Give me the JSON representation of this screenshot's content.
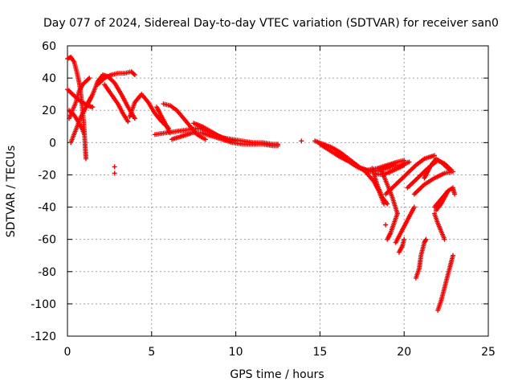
{
  "chart_data": {
    "type": "scatter",
    "title": "Day 077 of 2024, Sidereal Day-to-day VTEC variation (SDTVAR) for receiver san0",
    "xlabel": "GPS time / hours",
    "ylabel": "SDTVAR / TECUs",
    "xlim": [
      0,
      25
    ],
    "ylim": [
      -120,
      60
    ],
    "xticks": [
      0,
      5,
      10,
      15,
      20,
      25
    ],
    "yticks": [
      -120,
      -100,
      -80,
      -60,
      -40,
      -20,
      0,
      20,
      40,
      60
    ],
    "grid": true,
    "marker": "+",
    "color": "#ff0000",
    "series": [
      {
        "name": "arc1",
        "points": [
          [
            0.0,
            52
          ],
          [
            0.2,
            53
          ],
          [
            0.4,
            50
          ],
          [
            0.55,
            44
          ],
          [
            0.7,
            37
          ],
          [
            0.8,
            30
          ],
          [
            0.9,
            20
          ],
          [
            1.0,
            8
          ],
          [
            1.05,
            -2
          ],
          [
            1.1,
            -10
          ]
        ]
      },
      {
        "name": "arc2",
        "points": [
          [
            0.1,
            15
          ],
          [
            0.3,
            20
          ],
          [
            0.5,
            25
          ],
          [
            0.7,
            32
          ],
          [
            0.9,
            36
          ],
          [
            1.1,
            38
          ],
          [
            1.3,
            40
          ]
        ]
      },
      {
        "name": "arc3",
        "points": [
          [
            0.0,
            33
          ],
          [
            0.3,
            30
          ],
          [
            0.6,
            27
          ],
          [
            0.9,
            25
          ],
          [
            1.2,
            23
          ],
          [
            1.5,
            22
          ]
        ]
      },
      {
        "name": "arc4",
        "points": [
          [
            0.2,
            0
          ],
          [
            0.5,
            8
          ],
          [
            0.8,
            16
          ],
          [
            1.1,
            22
          ],
          [
            1.4,
            28
          ]
        ]
      },
      {
        "name": "arc5",
        "points": [
          [
            0.1,
            20
          ],
          [
            0.4,
            17
          ],
          [
            0.7,
            12
          ],
          [
            0.9,
            8
          ],
          [
            1.0,
            5
          ]
        ]
      },
      {
        "name": "arc6",
        "points": [
          [
            1.2,
            24
          ],
          [
            1.5,
            30
          ],
          [
            1.8,
            38
          ],
          [
            2.1,
            42
          ],
          [
            2.4,
            41
          ],
          [
            2.8,
            37
          ],
          [
            3.2,
            30
          ],
          [
            3.6,
            22
          ],
          [
            4.0,
            15
          ]
        ]
      },
      {
        "name": "arc7",
        "points": [
          [
            1.8,
            36
          ],
          [
            2.2,
            40
          ],
          [
            2.6,
            42
          ],
          [
            3.0,
            43
          ],
          [
            3.4,
            43
          ],
          [
            3.8,
            44
          ],
          [
            4.0,
            42
          ]
        ]
      },
      {
        "name": "arc8",
        "points": [
          [
            2.2,
            36
          ],
          [
            2.6,
            30
          ],
          [
            3.0,
            24
          ],
          [
            3.3,
            18
          ],
          [
            3.6,
            13
          ]
        ]
      },
      {
        "name": "isolated1",
        "points": [
          [
            2.8,
            -15
          ],
          [
            2.8,
            -19
          ],
          [
            18.9,
            -51
          ],
          [
            13.9,
            1
          ]
        ]
      },
      {
        "name": "arc9",
        "points": [
          [
            3.7,
            16
          ],
          [
            4.0,
            25
          ],
          [
            4.4,
            30
          ],
          [
            4.8,
            25
          ],
          [
            5.2,
            18
          ],
          [
            5.6,
            13
          ],
          [
            6.0,
            9
          ]
        ]
      },
      {
        "name": "arc10",
        "points": [
          [
            5.3,
            22
          ],
          [
            5.6,
            16
          ],
          [
            5.9,
            10
          ],
          [
            6.1,
            6
          ]
        ]
      },
      {
        "name": "arc11",
        "points": [
          [
            5.7,
            24
          ],
          [
            6.1,
            23
          ],
          [
            6.5,
            20
          ],
          [
            6.9,
            15
          ],
          [
            7.3,
            10
          ],
          [
            7.7,
            5
          ],
          [
            8.2,
            2
          ]
        ]
      },
      {
        "name": "arc12",
        "points": [
          [
            5.2,
            5
          ],
          [
            5.8,
            6
          ],
          [
            6.5,
            7
          ],
          [
            7.2,
            8
          ],
          [
            7.9,
            9
          ],
          [
            8.6,
            6
          ],
          [
            9.2,
            3
          ],
          [
            9.8,
            2
          ],
          [
            10.4,
            1
          ],
          [
            11.0,
            0
          ],
          [
            11.6,
            0
          ],
          [
            12.2,
            -1
          ],
          [
            12.5,
            -1
          ]
        ]
      },
      {
        "name": "arc13",
        "points": [
          [
            6.2,
            2
          ],
          [
            6.8,
            4
          ],
          [
            7.4,
            6
          ],
          [
            8.0,
            6
          ],
          [
            8.6,
            4
          ],
          [
            9.2,
            2
          ],
          [
            9.8,
            0
          ],
          [
            10.4,
            -1
          ],
          [
            11.0,
            -1
          ],
          [
            11.6,
            -1
          ],
          [
            12.2,
            -2
          ],
          [
            12.5,
            -2
          ]
        ]
      },
      {
        "name": "arc14",
        "points": [
          [
            7.5,
            12
          ],
          [
            8.0,
            10
          ],
          [
            8.5,
            7
          ],
          [
            9.0,
            4
          ],
          [
            9.5,
            2
          ],
          [
            10.0,
            1
          ]
        ]
      },
      {
        "name": "arc15",
        "points": [
          [
            14.7,
            1
          ],
          [
            15.2,
            -1
          ],
          [
            15.7,
            -3
          ],
          [
            16.2,
            -6
          ],
          [
            16.7,
            -10
          ],
          [
            17.2,
            -14
          ],
          [
            17.7,
            -18
          ],
          [
            18.2,
            -24
          ],
          [
            18.5,
            -30
          ],
          [
            18.8,
            -38
          ]
        ]
      },
      {
        "name": "arc16",
        "points": [
          [
            15.0,
            -1
          ],
          [
            15.6,
            -5
          ],
          [
            16.2,
            -9
          ],
          [
            16.8,
            -12
          ],
          [
            17.4,
            -16
          ],
          [
            18.0,
            -18
          ],
          [
            18.6,
            -17
          ],
          [
            19.2,
            -15
          ],
          [
            19.8,
            -14
          ],
          [
            20.3,
            -12
          ]
        ]
      },
      {
        "name": "arc17",
        "points": [
          [
            16.0,
            -6
          ],
          [
            16.6,
            -11
          ],
          [
            17.2,
            -15
          ],
          [
            17.8,
            -17
          ],
          [
            18.4,
            -16
          ],
          [
            19.0,
            -14
          ],
          [
            19.6,
            -12
          ],
          [
            20.0,
            -11
          ]
        ]
      },
      {
        "name": "arc18",
        "points": [
          [
            18.1,
            -16
          ],
          [
            18.4,
            -26
          ],
          [
            18.7,
            -34
          ],
          [
            19.0,
            -38
          ]
        ]
      },
      {
        "name": "arc19",
        "points": [
          [
            18.6,
            -16
          ],
          [
            19.0,
            -26
          ],
          [
            19.3,
            -34
          ],
          [
            19.6,
            -44
          ]
        ]
      },
      {
        "name": "arc20",
        "points": [
          [
            18.2,
            -19
          ],
          [
            18.7,
            -20
          ],
          [
            19.2,
            -18
          ],
          [
            19.6,
            -16
          ],
          [
            20.0,
            -14
          ]
        ]
      },
      {
        "name": "arc21",
        "points": [
          [
            18.9,
            -32
          ],
          [
            19.5,
            -26
          ],
          [
            20.1,
            -20
          ],
          [
            20.7,
            -14
          ],
          [
            21.2,
            -10
          ],
          [
            21.8,
            -8
          ]
        ]
      },
      {
        "name": "arc22",
        "points": [
          [
            20.2,
            -28
          ],
          [
            20.8,
            -22
          ],
          [
            21.4,
            -16
          ],
          [
            22.0,
            -11
          ],
          [
            22.4,
            -13
          ],
          [
            22.8,
            -17
          ]
        ]
      },
      {
        "name": "arc23",
        "points": [
          [
            20.6,
            -32
          ],
          [
            21.2,
            -26
          ],
          [
            21.8,
            -22
          ],
          [
            22.4,
            -19
          ],
          [
            22.9,
            -18
          ]
        ]
      },
      {
        "name": "arc24",
        "points": [
          [
            21.2,
            -22
          ],
          [
            21.4,
            -18
          ],
          [
            21.6,
            -14
          ],
          [
            21.9,
            -10
          ],
          [
            22.3,
            -13
          ],
          [
            22.7,
            -17
          ]
        ]
      },
      {
        "name": "arc25",
        "points": [
          [
            21.8,
            -40
          ],
          [
            22.2,
            -35
          ],
          [
            22.6,
            -30
          ],
          [
            22.9,
            -28
          ],
          [
            23.0,
            -32
          ]
        ]
      },
      {
        "name": "arc26",
        "points": [
          [
            22.6,
            -30
          ],
          [
            22.5,
            -32
          ],
          [
            22.4,
            -34
          ],
          [
            22.2,
            -38
          ],
          [
            21.9,
            -42
          ]
        ]
      },
      {
        "name": "arc27",
        "points": [
          [
            19.0,
            -60
          ],
          [
            19.2,
            -56
          ],
          [
            19.4,
            -50
          ],
          [
            19.6,
            -44
          ]
        ]
      },
      {
        "name": "arc28",
        "points": [
          [
            19.5,
            -62
          ],
          [
            19.9,
            -54
          ],
          [
            20.3,
            -46
          ],
          [
            20.6,
            -40
          ]
        ]
      },
      {
        "name": "arc29",
        "points": [
          [
            19.7,
            -68
          ],
          [
            19.9,
            -64
          ],
          [
            20.0,
            -60
          ]
        ]
      },
      {
        "name": "arc30",
        "points": [
          [
            21.8,
            -44
          ],
          [
            22.0,
            -50
          ],
          [
            22.2,
            -55
          ],
          [
            22.4,
            -60
          ]
        ]
      },
      {
        "name": "arc31",
        "points": [
          [
            20.7,
            -84
          ],
          [
            20.9,
            -78
          ],
          [
            21.0,
            -70
          ],
          [
            21.2,
            -62
          ],
          [
            21.3,
            -60
          ]
        ]
      },
      {
        "name": "arc32",
        "points": [
          [
            22.0,
            -104
          ],
          [
            22.2,
            -98
          ],
          [
            22.4,
            -90
          ],
          [
            22.6,
            -82
          ],
          [
            22.8,
            -74
          ],
          [
            22.9,
            -70
          ]
        ]
      }
    ]
  }
}
